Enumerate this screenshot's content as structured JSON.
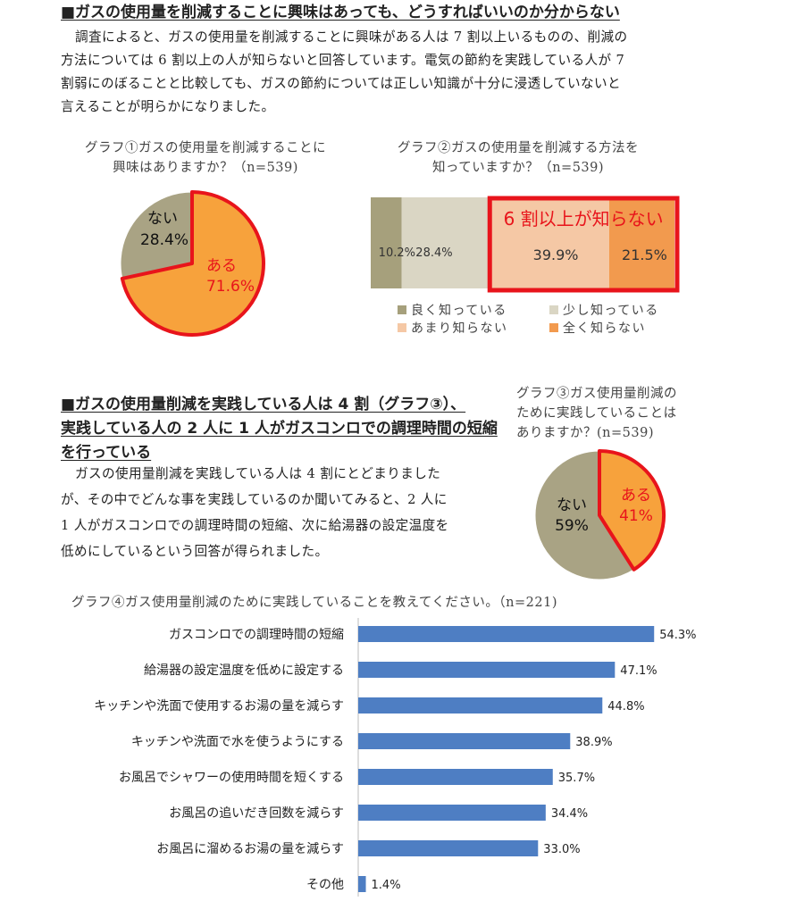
{
  "section1": {
    "heading": "■ガスの使用量を削減することに興味はあっても、どうすればいいのか分からない",
    "body_lines": [
      "調査によると、ガスの使用量を削減することに興味がある人は 7 割以上いるものの、削減の",
      "方法については 6 割以上の人が知らないと回答しています。電気の節約を実践している人が 7",
      "割弱にのぼることと比較しても、ガスの節約については正しい知識が十分に浸透していないと",
      "言えることが明らかになりました。"
    ]
  },
  "graph1": {
    "title_lines": [
      "グラフ①ガスの使用量を削減することに",
      "興味はありますか？（n=539)"
    ]
  },
  "graph2": {
    "title_lines": [
      "グラフ②ガスの使用量を削減する方法を",
      "知っていますか？（n=539)"
    ],
    "callout": "6 割以上が知らない"
  },
  "section2": {
    "heading_lines": [
      "■ガスの使用量削減を実践している人は 4 割（グラフ③）、",
      "実践している人の 2 人に 1 人がガスコンロでの調理時間の短縮",
      "を行っている"
    ],
    "body_lines": [
      "ガスの使用量削減を実践している人は 4 割にとどまりました",
      "が、その中でどんな事を実践しているのか聞いてみると、2 人に",
      "1 人がガスコンロでの調理時間の短縮、次に給湯器の設定温度を",
      "低めにしているという回答が得られました。"
    ]
  },
  "graph3": {
    "title_lines": [
      "グラフ③ガス使用量削減の",
      "ために実践していることは",
      "ありますか？(n=539)"
    ]
  },
  "graph4": {
    "title": "グラフ④ガス使用量削減のために実践していることを教えてください。（n=221)"
  },
  "colors": {
    "orange": "#F7A23C",
    "olive": "#A9A384",
    "red": "#E8141B",
    "bar_blue": "#4E7EC3",
    "stack1": "#A6A07C",
    "stack2": "#DAD6C4",
    "stack3": "#F5C8A5",
    "stack4": "#F29A4E"
  },
  "chart_data": [
    {
      "type": "pie",
      "categories": [
        "ある",
        "ない"
      ],
      "values": [
        71.6,
        28.4
      ],
      "labels": [
        "71.6%",
        "28.4%"
      ]
    },
    {
      "type": "bar",
      "stacked": true,
      "orientation": "horizontal",
      "series": [
        {
          "name": "良く知っている",
          "values": [
            10.2
          ],
          "label": "10.2%"
        },
        {
          "name": "少し知っている",
          "values": [
            28.4
          ],
          "label": "28.4%"
        },
        {
          "name": "あまり知らない",
          "values": [
            39.9
          ],
          "label": "39.9%"
        },
        {
          "name": "全く知らない",
          "values": [
            21.5
          ],
          "label": "21.5%"
        }
      ],
      "legend": "bottom"
    },
    {
      "type": "pie",
      "categories": [
        "ある",
        "ない"
      ],
      "values": [
        41,
        59
      ],
      "labels": [
        "41%",
        "59%"
      ]
    },
    {
      "type": "bar",
      "orientation": "horizontal",
      "categories": [
        "ガスコンロでの調理時間の短縮",
        "給湯器の設定温度を低めに設定する",
        "キッチンや洗面で使用するお湯の量を減らす",
        "キッチンや洗面で水を使うようにする",
        "お風呂でシャワーの使用時間を短くする",
        "お風呂の追いだき回数を減らす",
        "お風呂に溜めるお湯の量を減らす",
        "その他"
      ],
      "values": [
        54.3,
        47.1,
        44.8,
        38.9,
        35.7,
        34.4,
        33.0,
        1.4
      ],
      "labels": [
        "54.3%",
        "47.1%",
        "44.8%",
        "38.9%",
        "35.7%",
        "34.4%",
        "33.0%",
        "1.4%"
      ]
    }
  ]
}
